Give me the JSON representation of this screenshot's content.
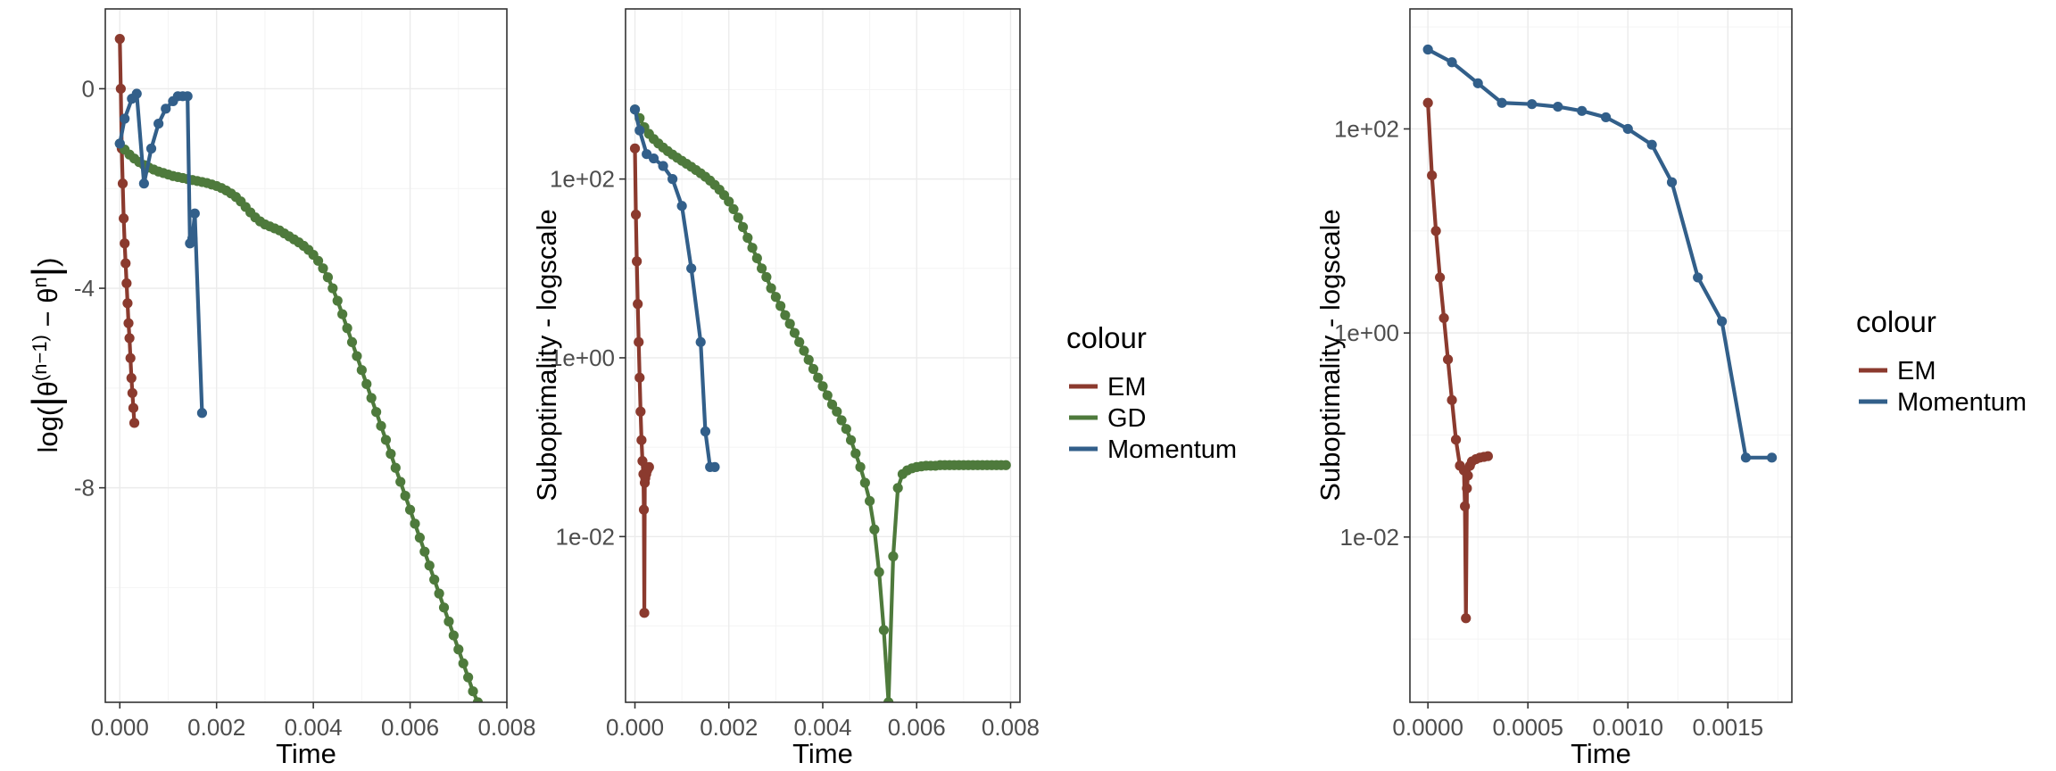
{
  "colors": {
    "EM": "#8B3A2E",
    "GD": "#4E7A3C",
    "Momentum": "#325F8A"
  },
  "chart_data": [
    {
      "type": "line",
      "xlabel": "Time",
      "ylabel": "log(|θ^(n−1) − θ^n|)",
      "ylabel_parts": {
        "open": "log(",
        "t1": "θ",
        "sup1": "(n−1)",
        "minus": " − ",
        "t2": "θ",
        "sup2": "n",
        "close": ")"
      },
      "xlim": [
        -0.0003,
        0.008
      ],
      "ylim": [
        -12.3,
        1.6
      ],
      "x_ticks": [
        0,
        0.002,
        0.004,
        0.006,
        0.008
      ],
      "x_tick_labels": [
        "0.000",
        "0.002",
        "0.004",
        "0.006",
        "0.008"
      ],
      "y_ticks": [
        0,
        -4,
        -8
      ],
      "y_tick_labels": [
        "0",
        "-4",
        "-8"
      ],
      "grid": true,
      "series": [
        {
          "name": "EM",
          "x": [
            0.0,
            2e-05,
            4e-05,
            6e-05,
            8e-05,
            0.0001,
            0.00012,
            0.00014,
            0.00016,
            0.00018,
            0.0002,
            0.00022,
            0.00024,
            0.00026,
            0.00028,
            0.0003
          ],
          "y": [
            1.0,
            0.0,
            -1.2,
            -1.9,
            -2.6,
            -3.1,
            -3.5,
            -3.9,
            -4.3,
            -4.7,
            -5.0,
            -5.4,
            -5.8,
            -6.1,
            -6.4,
            -6.7
          ]
        },
        {
          "name": "GD",
          "x": [
            0.0,
            0.0001,
            0.0002,
            0.0003,
            0.0004,
            0.0005,
            0.0006,
            0.0007,
            0.0008,
            0.0009,
            0.001,
            0.0011,
            0.0012,
            0.0013,
            0.0014,
            0.0015,
            0.0016,
            0.0017,
            0.0018,
            0.0019,
            0.002,
            0.0021,
            0.0022,
            0.0023,
            0.0024,
            0.0025,
            0.0026,
            0.0027,
            0.0028,
            0.0029,
            0.003,
            0.0031,
            0.0032,
            0.0033,
            0.0034,
            0.0035,
            0.0036,
            0.0037,
            0.0038,
            0.0039,
            0.004,
            0.0041,
            0.0042,
            0.0043,
            0.0044,
            0.0045,
            0.0046,
            0.0047,
            0.0048,
            0.0049,
            0.005,
            0.0051,
            0.0052,
            0.0053,
            0.0054,
            0.0055,
            0.0056,
            0.0057,
            0.0058,
            0.0059,
            0.006,
            0.0061,
            0.0062,
            0.0063,
            0.0064,
            0.0065,
            0.0066,
            0.0067,
            0.0068,
            0.0069,
            0.007,
            0.0071,
            0.0072,
            0.0073,
            0.0074,
            0.0075,
            0.0076,
            0.0077,
            0.0078,
            0.0079
          ],
          "y": [
            -1.1,
            -1.22,
            -1.32,
            -1.4,
            -1.47,
            -1.53,
            -1.58,
            -1.62,
            -1.66,
            -1.69,
            -1.72,
            -1.75,
            -1.77,
            -1.79,
            -1.81,
            -1.83,
            -1.85,
            -1.87,
            -1.89,
            -1.92,
            -1.95,
            -1.99,
            -2.04,
            -2.1,
            -2.17,
            -2.26,
            -2.37,
            -2.48,
            -2.58,
            -2.66,
            -2.72,
            -2.76,
            -2.8,
            -2.84,
            -2.9,
            -2.96,
            -3.02,
            -3.08,
            -3.15,
            -3.23,
            -3.33,
            -3.45,
            -3.6,
            -3.78,
            -4.0,
            -4.25,
            -4.52,
            -4.8,
            -5.08,
            -5.36,
            -5.64,
            -5.92,
            -6.2,
            -6.48,
            -6.76,
            -7.04,
            -7.32,
            -7.6,
            -7.88,
            -8.16,
            -8.44,
            -8.72,
            -9.0,
            -9.28,
            -9.56,
            -9.84,
            -10.12,
            -10.4,
            -10.68,
            -10.96,
            -11.24,
            -11.52,
            -11.8,
            -12.08,
            -12.3,
            -12.5,
            -12.7,
            -12.9,
            -13.1,
            -13.3
          ]
        },
        {
          "name": "Momentum",
          "x": [
            0.0,
            0.0001,
            0.00025,
            0.00035,
            0.0005,
            0.00065,
            0.0008,
            0.00095,
            0.0011,
            0.0012,
            0.0013,
            0.0014,
            0.00145,
            0.0015,
            0.00155,
            0.0017
          ],
          "y": [
            -1.1,
            -0.6,
            -0.2,
            -0.1,
            -1.9,
            -1.2,
            -0.7,
            -0.4,
            -0.25,
            -0.15,
            -0.15,
            -0.15,
            -3.1,
            -3.0,
            -2.5,
            -6.5
          ]
        }
      ]
    },
    {
      "type": "line",
      "xlabel": "Time",
      "ylabel": "Suboptimality - logscale",
      "y_scale": "log",
      "xlim": [
        -0.0002,
        0.0082
      ],
      "ylim": [
        0.00014,
        8000
      ],
      "x_ticks": [
        0,
        0.002,
        0.004,
        0.006,
        0.008
      ],
      "x_tick_labels": [
        "0.000",
        "0.002",
        "0.004",
        "0.006",
        "0.008"
      ],
      "y_ticks": [
        100,
        1,
        0.01
      ],
      "y_tick_labels": [
        "1e+02",
        "1e+00",
        "1e-02"
      ],
      "grid": true,
      "legend": {
        "title": "colour",
        "position": "right",
        "entries": [
          "EM",
          "GD",
          "Momentum"
        ]
      },
      "series": [
        {
          "name": "EM",
          "x": [
            0.0,
            2e-05,
            4e-05,
            6e-05,
            8e-05,
            0.0001,
            0.00012,
            0.00014,
            0.00016,
            0.00018,
            0.00019,
            0.0002,
            0.00021,
            0.00022,
            0.00024,
            0.00026,
            0.00028,
            0.0003
          ],
          "y": [
            220,
            40,
            12,
            4,
            1.5,
            0.6,
            0.25,
            0.12,
            0.07,
            0.05,
            0.02,
            0.0014,
            0.04,
            0.045,
            0.05,
            0.055,
            0.058,
            0.06
          ]
        },
        {
          "name": "GD",
          "x": [
            0.0,
            0.0001,
            0.0002,
            0.0003,
            0.0004,
            0.0005,
            0.0006,
            0.0007,
            0.0008,
            0.0009,
            0.001,
            0.0011,
            0.0012,
            0.0013,
            0.0014,
            0.0015,
            0.0016,
            0.0017,
            0.0018,
            0.0019,
            0.002,
            0.0021,
            0.0022,
            0.0023,
            0.0024,
            0.0025,
            0.0026,
            0.0027,
            0.0028,
            0.0029,
            0.003,
            0.0031,
            0.0032,
            0.0033,
            0.0034,
            0.0035,
            0.0036,
            0.0037,
            0.0038,
            0.0039,
            0.004,
            0.0041,
            0.0042,
            0.0043,
            0.0044,
            0.0045,
            0.0046,
            0.0047,
            0.0048,
            0.0049,
            0.005,
            0.0051,
            0.0052,
            0.0053,
            0.0054,
            0.0055,
            0.0056,
            0.0057,
            0.0058,
            0.0059,
            0.006,
            0.0061,
            0.0062,
            0.0063,
            0.0064,
            0.0065,
            0.0066,
            0.0067,
            0.0068,
            0.0069,
            0.007,
            0.0071,
            0.0072,
            0.0073,
            0.0074,
            0.0075,
            0.0076,
            0.0077,
            0.0078,
            0.0079
          ],
          "y": [
            600,
            480,
            380,
            320,
            280,
            250,
            225,
            205,
            188,
            173,
            160,
            148,
            137,
            126,
            116,
            106,
            96,
            86,
            76,
            66,
            56,
            46,
            37,
            29,
            22,
            17,
            13,
            10,
            8,
            6,
            4.8,
            3.8,
            3.0,
            2.4,
            1.9,
            1.5,
            1.2,
            0.95,
            0.75,
            0.6,
            0.48,
            0.38,
            0.3,
            0.25,
            0.2,
            0.16,
            0.12,
            0.085,
            0.06,
            0.04,
            0.025,
            0.012,
            0.004,
            0.0009,
            0.00014,
            0.006,
            0.035,
            0.05,
            0.055,
            0.058,
            0.06,
            0.061,
            0.062,
            0.062,
            0.062,
            0.063,
            0.063,
            0.063,
            0.063,
            0.063,
            0.063,
            0.063,
            0.063,
            0.063,
            0.063,
            0.063,
            0.063,
            0.063,
            0.063,
            0.063
          ]
        },
        {
          "name": "Momentum",
          "x": [
            0.0,
            0.0001,
            0.00025,
            0.0004,
            0.0006,
            0.0008,
            0.001,
            0.0012,
            0.0014,
            0.0015,
            0.0016,
            0.0017
          ],
          "y": [
            600,
            350,
            190,
            170,
            140,
            100,
            50,
            10,
            1.5,
            0.15,
            0.06,
            0.06
          ]
        }
      ]
    },
    {
      "type": "line",
      "xlabel": "Time",
      "ylabel": "Suboptimality - logscale",
      "y_scale": "log",
      "xlim": [
        -9e-05,
        0.00182
      ],
      "ylim": [
        0.00024,
        1500
      ],
      "x_ticks": [
        0,
        0.0005,
        0.001,
        0.0015
      ],
      "x_tick_labels": [
        "0.0000",
        "0.0005",
        "0.0010",
        "0.0015"
      ],
      "y_ticks": [
        100,
        1,
        0.01
      ],
      "y_tick_labels": [
        "1e+02",
        "1e+00",
        "1e-02"
      ],
      "grid": true,
      "legend": {
        "title": "colour",
        "position": "right",
        "entries": [
          "EM",
          "Momentum"
        ]
      },
      "series": [
        {
          "name": "EM",
          "x": [
            0.0,
            2e-05,
            4e-05,
            6e-05,
            8e-05,
            0.0001,
            0.00012,
            0.00014,
            0.00016,
            0.00018,
            0.000185,
            0.00019,
            0.000195,
            0.0002,
            0.00021,
            0.00022,
            0.00024,
            0.00026,
            0.00028,
            0.0003
          ],
          "y": [
            180,
            35,
            10,
            3.5,
            1.4,
            0.55,
            0.22,
            0.09,
            0.05,
            0.045,
            0.02,
            0.0016,
            0.03,
            0.04,
            0.05,
            0.055,
            0.058,
            0.06,
            0.061,
            0.062
          ]
        },
        {
          "name": "Momentum",
          "x": [
            0.0,
            0.00012,
            0.00025,
            0.00037,
            0.00052,
            0.00065,
            0.00077,
            0.00089,
            0.001,
            0.00112,
            0.00122,
            0.00135,
            0.00147,
            0.00159,
            0.00172
          ],
          "y": [
            600,
            450,
            280,
            180,
            175,
            165,
            150,
            130,
            100,
            70,
            30,
            3.5,
            1.3,
            0.06,
            0.06
          ]
        }
      ]
    }
  ]
}
